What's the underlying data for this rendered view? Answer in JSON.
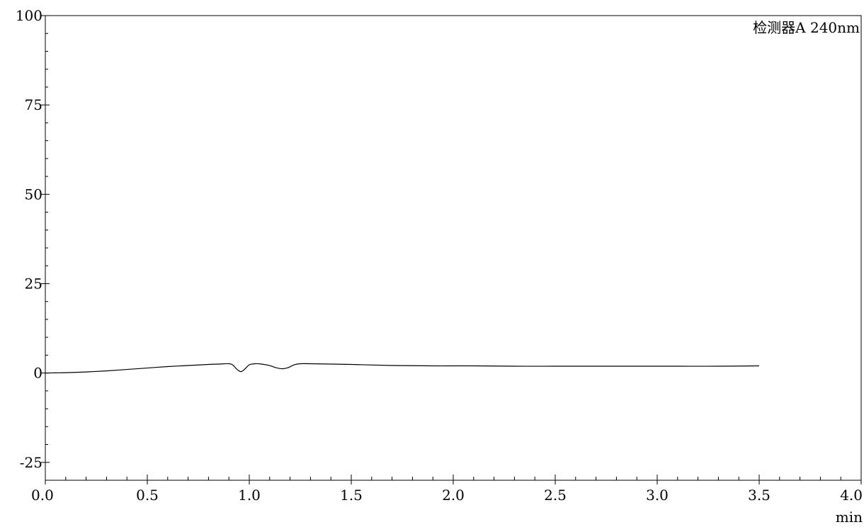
{
  "chart_data": {
    "type": "line",
    "title": "",
    "xlabel": "min",
    "ylabel": "",
    "xlim": [
      0.0,
      4.0
    ],
    "ylim": [
      -30,
      100
    ],
    "x_ticks": [
      0.0,
      0.5,
      1.0,
      1.5,
      2.0,
      2.5,
      3.0,
      3.5,
      4.0
    ],
    "x_tick_labels": [
      "0.0",
      "0.5",
      "1.0",
      "1.5",
      "2.0",
      "2.5",
      "3.0",
      "3.5",
      "4.0"
    ],
    "x_minor_step": 0.1,
    "y_ticks": [
      -25,
      0,
      25,
      50,
      75,
      100
    ],
    "y_tick_labels": [
      "-25",
      "0",
      "25",
      "50",
      "75",
      "100"
    ],
    "y_minor_step": 5,
    "grid": false,
    "legend": "top-right",
    "series_label": "检测器A 240nm",
    "colors": {
      "line": "#000000",
      "axes": "#000000"
    },
    "series": [
      {
        "x": [
          0.0,
          0.05,
          0.1,
          0.2,
          0.3,
          0.4,
          0.5,
          0.6,
          0.7,
          0.8,
          0.85,
          0.9,
          0.92,
          0.94,
          0.96,
          0.98,
          1.0,
          1.03,
          1.06,
          1.1,
          1.13,
          1.16,
          1.19,
          1.22,
          1.25,
          1.3,
          1.5,
          1.7,
          1.9,
          2.1,
          2.3,
          2.5,
          2.7,
          2.9,
          3.1,
          3.3,
          3.5
        ],
        "y": [
          0.0,
          0.05,
          0.1,
          0.3,
          0.6,
          1.0,
          1.4,
          1.8,
          2.1,
          2.4,
          2.5,
          2.6,
          2.2,
          1.0,
          0.4,
          1.2,
          2.3,
          2.6,
          2.5,
          2.1,
          1.5,
          1.2,
          1.5,
          2.3,
          2.6,
          2.6,
          2.4,
          2.1,
          2.0,
          2.0,
          1.9,
          1.9,
          1.9,
          1.9,
          1.9,
          1.9,
          2.0
        ]
      }
    ]
  }
}
